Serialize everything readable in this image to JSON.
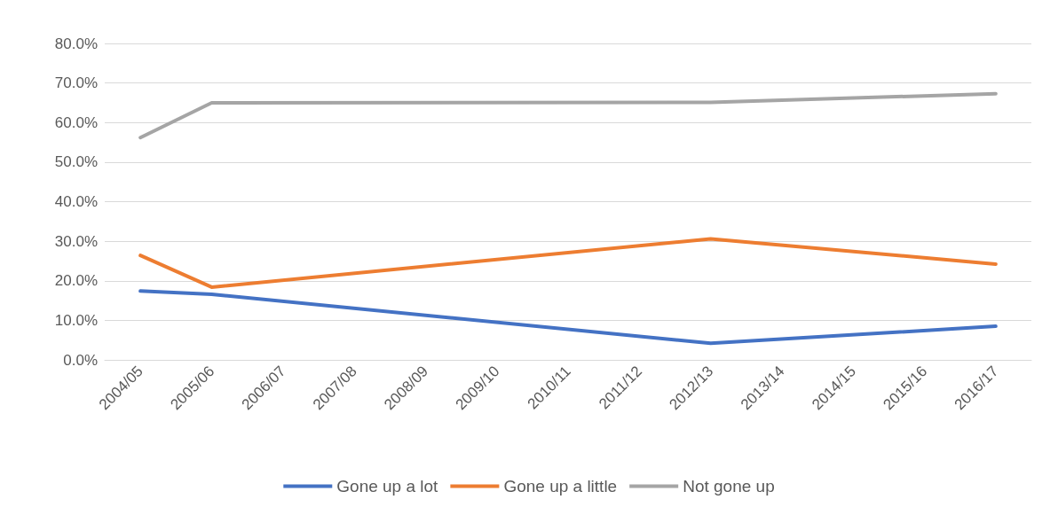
{
  "chart_data": {
    "type": "line",
    "categories": [
      "2004/05",
      "2005/06",
      "2006/07",
      "2007/08",
      "2008/09",
      "2009/10",
      "2010/11",
      "2011/12",
      "2012/13",
      "2013/14",
      "2014/15",
      "2015/16",
      "2016/17"
    ],
    "series": [
      {
        "name": "Gone up a lot",
        "color": "#4472c4",
        "values": [
          17.4,
          16.6,
          null,
          null,
          null,
          null,
          null,
          null,
          4.2,
          null,
          null,
          null,
          8.5
        ]
      },
      {
        "name": "Gone up a little",
        "color": "#ed7d31",
        "values": [
          26.4,
          18.4,
          null,
          null,
          null,
          null,
          null,
          null,
          30.6,
          null,
          null,
          null,
          24.2
        ]
      },
      {
        "name": "Not gone up",
        "color": "#a5a5a5",
        "values": [
          56.2,
          65.0,
          null,
          null,
          null,
          null,
          null,
          null,
          65.1,
          null,
          null,
          null,
          67.3
        ]
      }
    ],
    "ylim": [
      0,
      80
    ],
    "yticks": [
      {
        "value": 0,
        "label": "0.0%"
      },
      {
        "value": 10,
        "label": "10.0%"
      },
      {
        "value": 20,
        "label": "20.0%"
      },
      {
        "value": 30,
        "label": "30.0%"
      },
      {
        "value": 40,
        "label": "40.0%"
      },
      {
        "value": 50,
        "label": "50.0%"
      },
      {
        "value": 60,
        "label": "60.0%"
      },
      {
        "value": 70,
        "label": "70.0%"
      },
      {
        "value": 80,
        "label": "80.0%"
      }
    ],
    "grid": "y",
    "legend": "bottom",
    "marker": "none",
    "line_style": "solid"
  }
}
